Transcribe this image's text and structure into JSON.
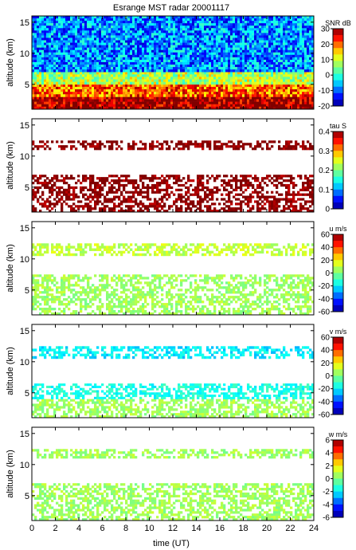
{
  "figure": {
    "title": "Esrange MST radar 20001117",
    "xlabel": "time (UT)"
  },
  "chart_data": [
    {
      "type": "heatmap",
      "quantity": "SNR",
      "colorbar_label": "SNR dB",
      "clim": [
        -20,
        30
      ],
      "colorbar_ticks": [
        30,
        20,
        10,
        0,
        -10,
        -20
      ],
      "ylabel": "altitude (km)",
      "ylim": [
        1,
        16
      ],
      "yticks": [
        5,
        10,
        15
      ],
      "xlim": [
        0,
        24
      ],
      "xticks": [
        0,
        2,
        4,
        6,
        8,
        10,
        12,
        14,
        16,
        18,
        20,
        22,
        24
      ],
      "layers_value": [
        {
          "alt_range": [
            1,
            3
          ],
          "value": 29
        },
        {
          "alt_range": [
            3,
            5
          ],
          "value": 20
        },
        {
          "alt_range": [
            5,
            7
          ],
          "value": 8
        },
        {
          "alt_range": [
            7,
            16
          ],
          "value": -8
        }
      ]
    },
    {
      "type": "heatmap",
      "quantity": "tau",
      "colorbar_label": "tau S",
      "clim": [
        0,
        0.4
      ],
      "colorbar_ticks": [
        0.4,
        0.3,
        0.2,
        0.1,
        0
      ],
      "ylabel": "altitude (km)",
      "ylim": [
        1,
        16
      ],
      "yticks": [
        5,
        10,
        15
      ],
      "xlim": [
        0,
        24
      ],
      "xticks": [
        0,
        2,
        4,
        6,
        8,
        10,
        12,
        14,
        16,
        18,
        20,
        22,
        24
      ],
      "layers_value": [
        {
          "alt_range": [
            1,
            7
          ],
          "value": 0.4
        },
        {
          "alt_range": [
            11,
            12.5
          ],
          "value": 0.4
        }
      ]
    },
    {
      "type": "heatmap",
      "quantity": "u",
      "colorbar_label": "u m/s",
      "clim": [
        -60,
        60
      ],
      "colorbar_ticks": [
        60,
        40,
        20,
        0,
        -20,
        -40,
        -60
      ],
      "ylabel": "altitude (km)",
      "ylim": [
        1,
        16
      ],
      "yticks": [
        5,
        10,
        15
      ],
      "xlim": [
        0,
        24
      ],
      "xticks": [
        0,
        2,
        4,
        6,
        8,
        10,
        12,
        14,
        16,
        18,
        20,
        22,
        24
      ],
      "layers_value": [
        {
          "alt_range": [
            1,
            7.5
          ],
          "value": 5
        },
        {
          "alt_range": [
            10.5,
            12.5
          ],
          "value": 10
        }
      ]
    },
    {
      "type": "heatmap",
      "quantity": "v",
      "colorbar_label": "v m/s",
      "clim": [
        -60,
        60
      ],
      "colorbar_ticks": [
        60,
        40,
        20,
        0,
        -20,
        -40,
        -60
      ],
      "ylabel": "altitude (km)",
      "ylim": [
        1,
        16
      ],
      "yticks": [
        5,
        10,
        15
      ],
      "xlim": [
        0,
        24
      ],
      "xticks": [
        0,
        2,
        4,
        6,
        8,
        10,
        12,
        14,
        16,
        18,
        20,
        22,
        24
      ],
      "layers_value": [
        {
          "alt_range": [
            1,
            4
          ],
          "value": 5
        },
        {
          "alt_range": [
            4,
            6.5
          ],
          "value": -15
        },
        {
          "alt_range": [
            10.5,
            12.5
          ],
          "value": -20
        }
      ]
    },
    {
      "type": "heatmap",
      "quantity": "w",
      "colorbar_label": "w m/s",
      "clim": [
        -6,
        6
      ],
      "colorbar_ticks": [
        6,
        4,
        2,
        0,
        -2,
        -4,
        -6
      ],
      "ylabel": "altitude (km)",
      "ylim": [
        1,
        16
      ],
      "yticks": [
        5,
        10,
        15
      ],
      "xlim": [
        0,
        24
      ],
      "xticks": [
        0,
        2,
        4,
        6,
        8,
        10,
        12,
        14,
        16,
        18,
        20,
        22,
        24
      ],
      "layers_value": [
        {
          "alt_range": [
            1,
            7
          ],
          "value": 0.5
        },
        {
          "alt_range": [
            11,
            12.5
          ],
          "value": 0.5
        }
      ]
    }
  ]
}
